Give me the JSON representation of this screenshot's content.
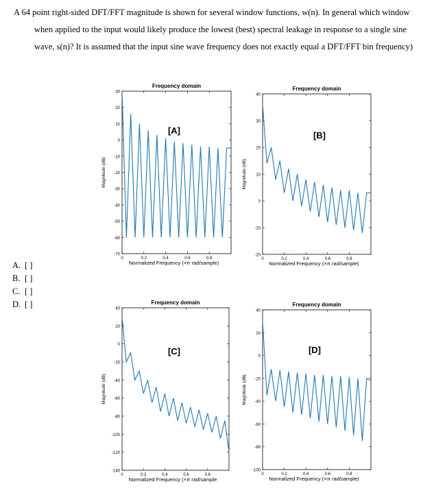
{
  "question": "A 64 point right-sided DFT/FFT magnitude is shown for several window functions, w(n).  In general which window when applied to the input would likely produce the lowest (best) spectral leakage in response to a single sine wave, s(n)?  It is assumed that the input sine wave frequency does not exactly equal a DFT/FFT bin frequency)",
  "options": [
    {
      "letter": "A.",
      "box": "[ ]"
    },
    {
      "letter": "B.",
      "box": "[ ]"
    },
    {
      "letter": "C.",
      "box": "[ ]"
    },
    {
      "letter": "D.",
      "box": "[ ]"
    }
  ],
  "chart_data": [
    {
      "type": "line",
      "title": "Frequency domain",
      "annotation": "[A]",
      "x_label": "Normalized Frequency  (×π rad/sample)",
      "y_label": "Magnitude (dB)",
      "color": "#1f77b4",
      "x": [
        0,
        0.04,
        0.08,
        0.12,
        0.16,
        0.2,
        0.24,
        0.28,
        0.32,
        0.36,
        0.4,
        0.44,
        0.48,
        0.52,
        0.56,
        0.6,
        0.64,
        0.68,
        0.72,
        0.76,
        0.8,
        0.84,
        0.88,
        0.92,
        0.96,
        1.0
      ],
      "values": [
        30,
        -60,
        16,
        -60,
        10,
        -60,
        6,
        -60,
        3,
        -60,
        1,
        -60,
        -1,
        -60,
        -2,
        -60,
        -3,
        -60,
        -4,
        -60,
        -4,
        -60,
        -5,
        -60,
        -5,
        -5
      ],
      "xlim": [
        0,
        1
      ],
      "xticks": [
        0,
        0.2,
        0.4,
        0.6,
        0.8
      ],
      "ylim": [
        -70,
        30
      ],
      "yticks": [
        -70,
        -60,
        -50,
        -40,
        -30,
        -20,
        -10,
        0,
        10,
        20,
        30
      ]
    },
    {
      "type": "line",
      "title": "Frequency domain",
      "annotation": "[B]",
      "x_label": "Normalized Frequency  (×π rad/sample)",
      "y_label": "Magnitude (dB)",
      "color": "#1f77b4",
      "x": [
        0,
        0.04,
        0.08,
        0.12,
        0.16,
        0.2,
        0.24,
        0.28,
        0.32,
        0.36,
        0.4,
        0.44,
        0.48,
        0.52,
        0.56,
        0.6,
        0.64,
        0.68,
        0.72,
        0.76,
        0.8,
        0.84,
        0.88,
        0.92,
        0.96,
        1.0
      ],
      "values": [
        36,
        14,
        20,
        8,
        15,
        3,
        12,
        0,
        10,
        -2,
        8,
        -4,
        7,
        -6,
        6,
        -8,
        5,
        -9,
        4,
        -10,
        4,
        -11,
        3,
        -12,
        3,
        3
      ],
      "xlim": [
        0,
        1
      ],
      "xticks": [
        0,
        0.2,
        0.4,
        0.6,
        0.8
      ],
      "ylim": [
        -20,
        40
      ],
      "yticks": [
        -20,
        -10,
        0,
        10,
        20,
        30,
        40
      ]
    },
    {
      "type": "line",
      "title": "Frequency domain",
      "annotation": "[C]",
      "x_label": "Normalized Frequency  (×π rad/sample",
      "y_label": "Magnitude (dB)",
      "color": "#1f77b4",
      "x": [
        0,
        0.04,
        0.08,
        0.12,
        0.16,
        0.2,
        0.24,
        0.28,
        0.32,
        0.36,
        0.4,
        0.44,
        0.48,
        0.52,
        0.56,
        0.6,
        0.64,
        0.68,
        0.72,
        0.76,
        0.8,
        0.84,
        0.88,
        0.92,
        0.96,
        1.0
      ],
      "values": [
        30,
        -20,
        -10,
        -40,
        -30,
        -55,
        -40,
        -65,
        -48,
        -75,
        -55,
        -80,
        -60,
        -85,
        -65,
        -88,
        -70,
        -92,
        -73,
        -95,
        -77,
        -98,
        -80,
        -105,
        -85,
        -120
      ],
      "xlim": [
        0,
        1
      ],
      "xticks": [
        0,
        0.2,
        0.4,
        0.6,
        0.8
      ],
      "ylim": [
        -140,
        40
      ],
      "yticks": [
        -140,
        -120,
        -100,
        -80,
        -60,
        -40,
        -20,
        0,
        20,
        40
      ]
    },
    {
      "type": "line",
      "title": "Frequency domain",
      "annotation": "[D]",
      "x_label": "Normalized Frequency  (×π rad/sample)",
      "y_label": "Magnitude (dB)",
      "color": "#1f77b4",
      "x": [
        0,
        0.04,
        0.08,
        0.12,
        0.16,
        0.2,
        0.24,
        0.28,
        0.32,
        0.36,
        0.4,
        0.44,
        0.48,
        0.52,
        0.56,
        0.6,
        0.64,
        0.68,
        0.72,
        0.76,
        0.8,
        0.84,
        0.88,
        0.92,
        0.96,
        1.0
      ],
      "values": [
        30,
        -35,
        -12,
        -40,
        -13,
        -45,
        -14,
        -50,
        -15,
        -52,
        -16,
        -55,
        -17,
        -58,
        -17,
        -60,
        -18,
        -63,
        -18,
        -66,
        -19,
        -70,
        -20,
        -75,
        -20,
        -22
      ],
      "xlim": [
        0,
        1
      ],
      "xticks": [
        0,
        0.2,
        0.4,
        0.6,
        0.8
      ],
      "ylim": [
        -100,
        40
      ],
      "yticks": [
        -100,
        -80,
        -60,
        -40,
        -20,
        0,
        20,
        40
      ]
    }
  ]
}
